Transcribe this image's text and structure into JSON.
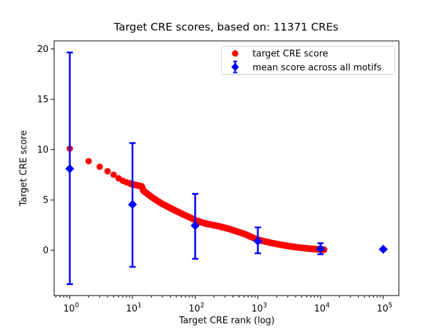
{
  "chart_data": {
    "type": "scatter",
    "title": "Target CRE scores, based on: 11371 CREs",
    "xlabel": "Target CRE rank (log)",
    "ylabel": "Target CRE score",
    "x_scale": "log",
    "grid": false,
    "legend_position": "upper right",
    "xlim_log10": [
      -0.25,
      5.25
    ],
    "ylim": [
      -4.5,
      20.8
    ],
    "x_ticks": [
      {
        "base": "10",
        "exp": "0"
      },
      {
        "base": "10",
        "exp": "1"
      },
      {
        "base": "10",
        "exp": "2"
      },
      {
        "base": "10",
        "exp": "3"
      },
      {
        "base": "10",
        "exp": "4"
      },
      {
        "base": "10",
        "exp": "5"
      }
    ],
    "y_ticks": [
      {
        "label": "0",
        "value": 0
      },
      {
        "label": "5",
        "value": 5
      },
      {
        "label": "10",
        "value": 10
      },
      {
        "label": "15",
        "value": 15
      },
      {
        "label": "20",
        "value": 20
      }
    ],
    "colors": {
      "target": "#ff0000",
      "mean": "#0000ff",
      "text": "#000000",
      "spine": "#000000",
      "legend_border": "#cccccc",
      "background": "#ffffff"
    },
    "series": {
      "target": {
        "label": "target CRE score",
        "marker": "circle",
        "color": "#ff0000",
        "points": [
          [
            1,
            10.1
          ],
          [
            2,
            8.85
          ],
          [
            3,
            8.3
          ],
          [
            4,
            7.85
          ],
          [
            5,
            7.5
          ],
          [
            6,
            7.15
          ],
          [
            7,
            6.9
          ],
          [
            8,
            6.75
          ],
          [
            9,
            6.65
          ],
          [
            10,
            6.55
          ],
          [
            12,
            6.45
          ],
          [
            14,
            6.35
          ],
          [
            15,
            5.9
          ],
          [
            17,
            5.65
          ],
          [
            20,
            5.3
          ],
          [
            25,
            4.9
          ],
          [
            30,
            4.6
          ],
          [
            40,
            4.2
          ],
          [
            50,
            3.9
          ],
          [
            65,
            3.55
          ],
          [
            80,
            3.3
          ],
          [
            100,
            3.0
          ],
          [
            130,
            2.75
          ],
          [
            160,
            2.6
          ],
          [
            200,
            2.48
          ],
          [
            260,
            2.33
          ],
          [
            320,
            2.18
          ],
          [
            400,
            2.0
          ],
          [
            500,
            1.8
          ],
          [
            650,
            1.55
          ],
          [
            800,
            1.3
          ],
          [
            1000,
            1.05
          ],
          [
            1300,
            0.88
          ],
          [
            1600,
            0.74
          ],
          [
            2000,
            0.62
          ],
          [
            2600,
            0.49
          ],
          [
            3200,
            0.4
          ],
          [
            4000,
            0.31
          ],
          [
            5000,
            0.24
          ],
          [
            6500,
            0.17
          ],
          [
            8000,
            0.12
          ],
          [
            10000,
            0.08
          ],
          [
            11371,
            0.05
          ]
        ]
      },
      "mean": {
        "label": "mean score across all motifs",
        "marker": "diamond",
        "color": "#0000ff",
        "points": [
          {
            "rank": 1,
            "mean": 8.1,
            "lo": -3.37,
            "hi": 19.65
          },
          {
            "rank": 10,
            "mean": 4.55,
            "lo": -1.65,
            "hi": 10.65
          },
          {
            "rank": 100,
            "mean": 2.45,
            "lo": -0.85,
            "hi": 5.6
          },
          {
            "rank": 1000,
            "mean": 0.9,
            "lo": -0.3,
            "hi": 2.27
          },
          {
            "rank": 10000,
            "mean": 0.15,
            "lo": -0.4,
            "hi": 0.7
          },
          {
            "rank": 100000,
            "mean": 0.1,
            "lo": 0.1,
            "hi": 0.1
          }
        ]
      }
    }
  }
}
